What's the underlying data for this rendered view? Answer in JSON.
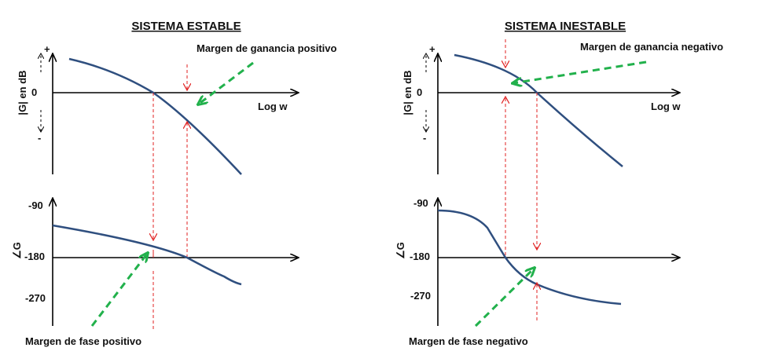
{
  "left": {
    "title": "SISTEMA ESTABLE",
    "gain_ylabel": "|G| en dB",
    "gain_plus": "+",
    "gain_zero": "0",
    "gain_minus": "-",
    "gain_xlabel": "Log w",
    "gain_margin_label": "Margen de ganancia positivo",
    "phase_ylabel": "∠G",
    "phase_ticks": [
      "-90",
      "-180",
      "-270"
    ],
    "phase_margin_label": "Margen de fase positivo"
  },
  "right": {
    "title": "SISTEMA INESTABLE",
    "gain_ylabel": "|G| en dB",
    "gain_plus": "+",
    "gain_zero": "0",
    "gain_minus": "-",
    "gain_xlabel": "Log w",
    "gain_margin_label": "Margen de ganancia negativo",
    "phase_ylabel": "∠G",
    "phase_ticks": [
      "-90",
      "-180",
      "-270"
    ],
    "phase_margin_label": "Margen de fase negativo"
  },
  "colors": {
    "curve": "#2f4f7f",
    "guide": "#e02020",
    "pointer": "#22b14c",
    "axis": "#000000"
  }
}
